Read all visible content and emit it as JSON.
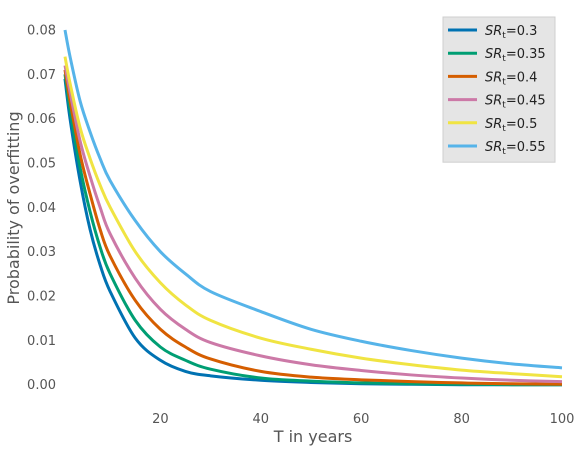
{
  "chart_data": {
    "type": "line",
    "title": "",
    "xlabel": "T in years",
    "ylabel": "Probability of overfitting",
    "xlim": [
      1,
      100
    ],
    "ylim": [
      -0.003,
      0.08
    ],
    "xticks": [
      20,
      40,
      60,
      80,
      100
    ],
    "yticks": [
      0.0,
      0.01,
      0.02,
      0.03,
      0.04,
      0.05,
      0.06,
      0.07,
      0.08
    ],
    "xtick_labels": [
      "20",
      "40",
      "60",
      "80",
      "100"
    ],
    "ytick_labels": [
      "0.00",
      "0.01",
      "0.02",
      "0.03",
      "0.04",
      "0.05",
      "0.06",
      "0.07",
      "0.08"
    ],
    "grid": false,
    "legend_position": "top-right",
    "x": [
      1,
      2,
      4,
      6,
      8,
      10,
      15,
      20,
      25,
      30,
      40,
      50,
      60,
      70,
      80,
      90,
      100
    ],
    "series": [
      {
        "name_base": "SR",
        "name_sub": "t",
        "name_value": "=0.3",
        "color": "#0072b2",
        "values": [
          0.069,
          0.06,
          0.046,
          0.035,
          0.027,
          0.021,
          0.0105,
          0.0055,
          0.003,
          0.002,
          0.001,
          0.0005,
          0.0002,
          0.0001,
          0.0,
          0.0,
          0.0
        ]
      },
      {
        "name_base": "SR",
        "name_sub": "t",
        "name_value": "=0.35",
        "color": "#009e73",
        "values": [
          0.07,
          0.062,
          0.049,
          0.039,
          0.031,
          0.025,
          0.0145,
          0.0085,
          0.0055,
          0.0035,
          0.0015,
          0.0008,
          0.0004,
          0.0002,
          0.0001,
          0.0,
          0.0
        ]
      },
      {
        "name_base": "SR",
        "name_sub": "t",
        "name_value": "=0.4",
        "color": "#d55e00",
        "values": [
          0.071,
          0.064,
          0.052,
          0.043,
          0.035,
          0.029,
          0.019,
          0.0125,
          0.0085,
          0.0058,
          0.003,
          0.0017,
          0.0011,
          0.0007,
          0.0004,
          0.0002,
          0.0001
        ]
      },
      {
        "name_base": "SR",
        "name_sub": "t",
        "name_value": "=0.45",
        "color": "#cc79a7",
        "values": [
          0.072,
          0.066,
          0.055,
          0.047,
          0.04,
          0.034,
          0.024,
          0.017,
          0.0125,
          0.0095,
          0.0065,
          0.0045,
          0.0032,
          0.0022,
          0.0015,
          0.001,
          0.0007
        ]
      },
      {
        "name_base": "SR",
        "name_sub": "t",
        "name_value": "=0.5",
        "color": "#f0e442",
        "values": [
          0.074,
          0.068,
          0.058,
          0.051,
          0.045,
          0.04,
          0.03,
          0.023,
          0.018,
          0.0145,
          0.0105,
          0.008,
          0.006,
          0.0045,
          0.0033,
          0.0025,
          0.0018
        ]
      },
      {
        "name_base": "SR",
        "name_sub": "t",
        "name_value": "=0.55",
        "color": "#56b4e9",
        "values": [
          0.08,
          0.074,
          0.064,
          0.057,
          0.051,
          0.046,
          0.037,
          0.03,
          0.025,
          0.021,
          0.0165,
          0.0125,
          0.0098,
          0.0077,
          0.006,
          0.0047,
          0.0038
        ]
      }
    ]
  }
}
